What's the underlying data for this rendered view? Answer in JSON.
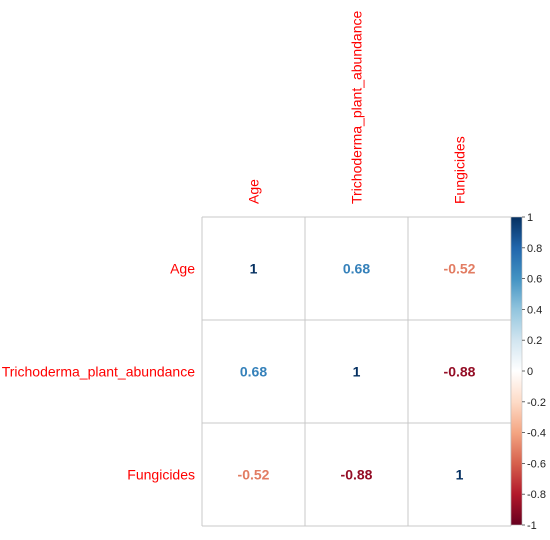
{
  "chart_data": {
    "type": "heatmap",
    "variables": [
      "Age",
      "Trichoderma_plant_abundance",
      "Fungicides"
    ],
    "matrix": [
      [
        1,
        0.68,
        -0.52
      ],
      [
        0.68,
        1,
        -0.88
      ],
      [
        -0.52,
        -0.88,
        1
      ]
    ],
    "value_labels": [
      [
        "1",
        "0.68",
        "-0.52"
      ],
      [
        "0.68",
        "1",
        "-0.88"
      ],
      [
        "-0.52",
        "-0.88",
        "1"
      ]
    ],
    "colorbar": {
      "range": [
        -1,
        1
      ],
      "ticks": [
        "1",
        "0.8",
        "0.6",
        "0.4",
        "0.2",
        "0",
        "-0.2",
        "-0.4",
        "-0.6",
        "-0.8",
        "-1"
      ],
      "tick_values": [
        1,
        0.8,
        0.6,
        0.4,
        0.2,
        0,
        -0.2,
        -0.4,
        -0.6,
        -0.8,
        -1
      ],
      "placement": "right"
    },
    "label_color": "#ff0000",
    "grid": true,
    "colors": {
      "negative_end": "#67001f",
      "positive_end": "#053061",
      "grid_line": "#c8c8c8"
    }
  }
}
